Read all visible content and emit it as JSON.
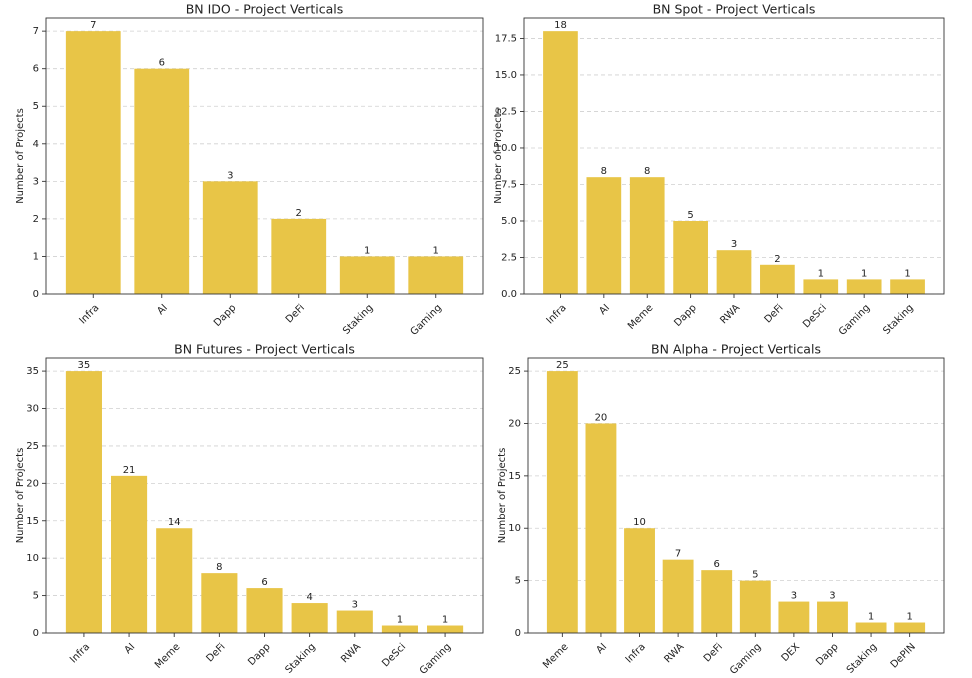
{
  "chart_data": [
    {
      "type": "bar",
      "title": "BN IDO - Project Verticals",
      "ylabel": "Number of Projects",
      "categories": [
        "Infra",
        "AI",
        "Dapp",
        "DeFi",
        "Staking",
        "Gaming"
      ],
      "values": [
        7,
        6,
        3,
        2,
        1,
        1
      ],
      "color": "#e8c547",
      "ylim": [
        0,
        7.35
      ],
      "yticks": [
        0,
        1,
        2,
        3,
        4,
        5,
        6,
        7
      ],
      "grid": true
    },
    {
      "type": "bar",
      "title": "BN Spot - Project Verticals",
      "ylabel": "Number of Projects",
      "categories": [
        "Infra",
        "AI",
        "Meme",
        "Dapp",
        "RWA",
        "DeFi",
        "DeSci",
        "Gaming",
        "Staking"
      ],
      "values": [
        18,
        8,
        8,
        5,
        3,
        2,
        1,
        1,
        1
      ],
      "color": "#e8c547",
      "ylim": [
        0,
        18.9
      ],
      "yticks": [
        {
          "value": 0,
          "label": "0.0"
        },
        2.5,
        {
          "value": 5,
          "label": "5.0"
        },
        7.5,
        {
          "value": 10,
          "label": "10.0"
        },
        12.5,
        {
          "value": 15,
          "label": "15.0"
        },
        17.5
      ],
      "grid": true
    },
    {
      "type": "bar",
      "title": "BN Futures - Project Verticals",
      "ylabel": "Number of Projects",
      "categories": [
        "Infra",
        "AI",
        "Meme",
        "DeFi",
        "Dapp",
        "Staking",
        "RWA",
        "DeSci",
        "Gaming"
      ],
      "values": [
        35,
        21,
        14,
        8,
        6,
        4,
        3,
        1,
        1
      ],
      "color": "#e8c547",
      "ylim": [
        0,
        36.75
      ],
      "yticks": [
        0,
        5,
        10,
        15,
        20,
        25,
        30,
        35
      ],
      "grid": true
    },
    {
      "type": "bar",
      "title": "BN Alpha - Project Verticals",
      "ylabel": "Number of Projects",
      "categories": [
        "Meme",
        "AI",
        "Infra",
        "RWA",
        "DeFi",
        "Gaming",
        "DEX",
        "Dapp",
        "Staking",
        "DePIN"
      ],
      "values": [
        25,
        20,
        10,
        7,
        6,
        5,
        3,
        3,
        1,
        1
      ],
      "color": "#e8c547",
      "ylim": [
        0,
        26.25
      ],
      "yticks": [
        0,
        5,
        10,
        15,
        20,
        25
      ],
      "grid": true
    }
  ]
}
